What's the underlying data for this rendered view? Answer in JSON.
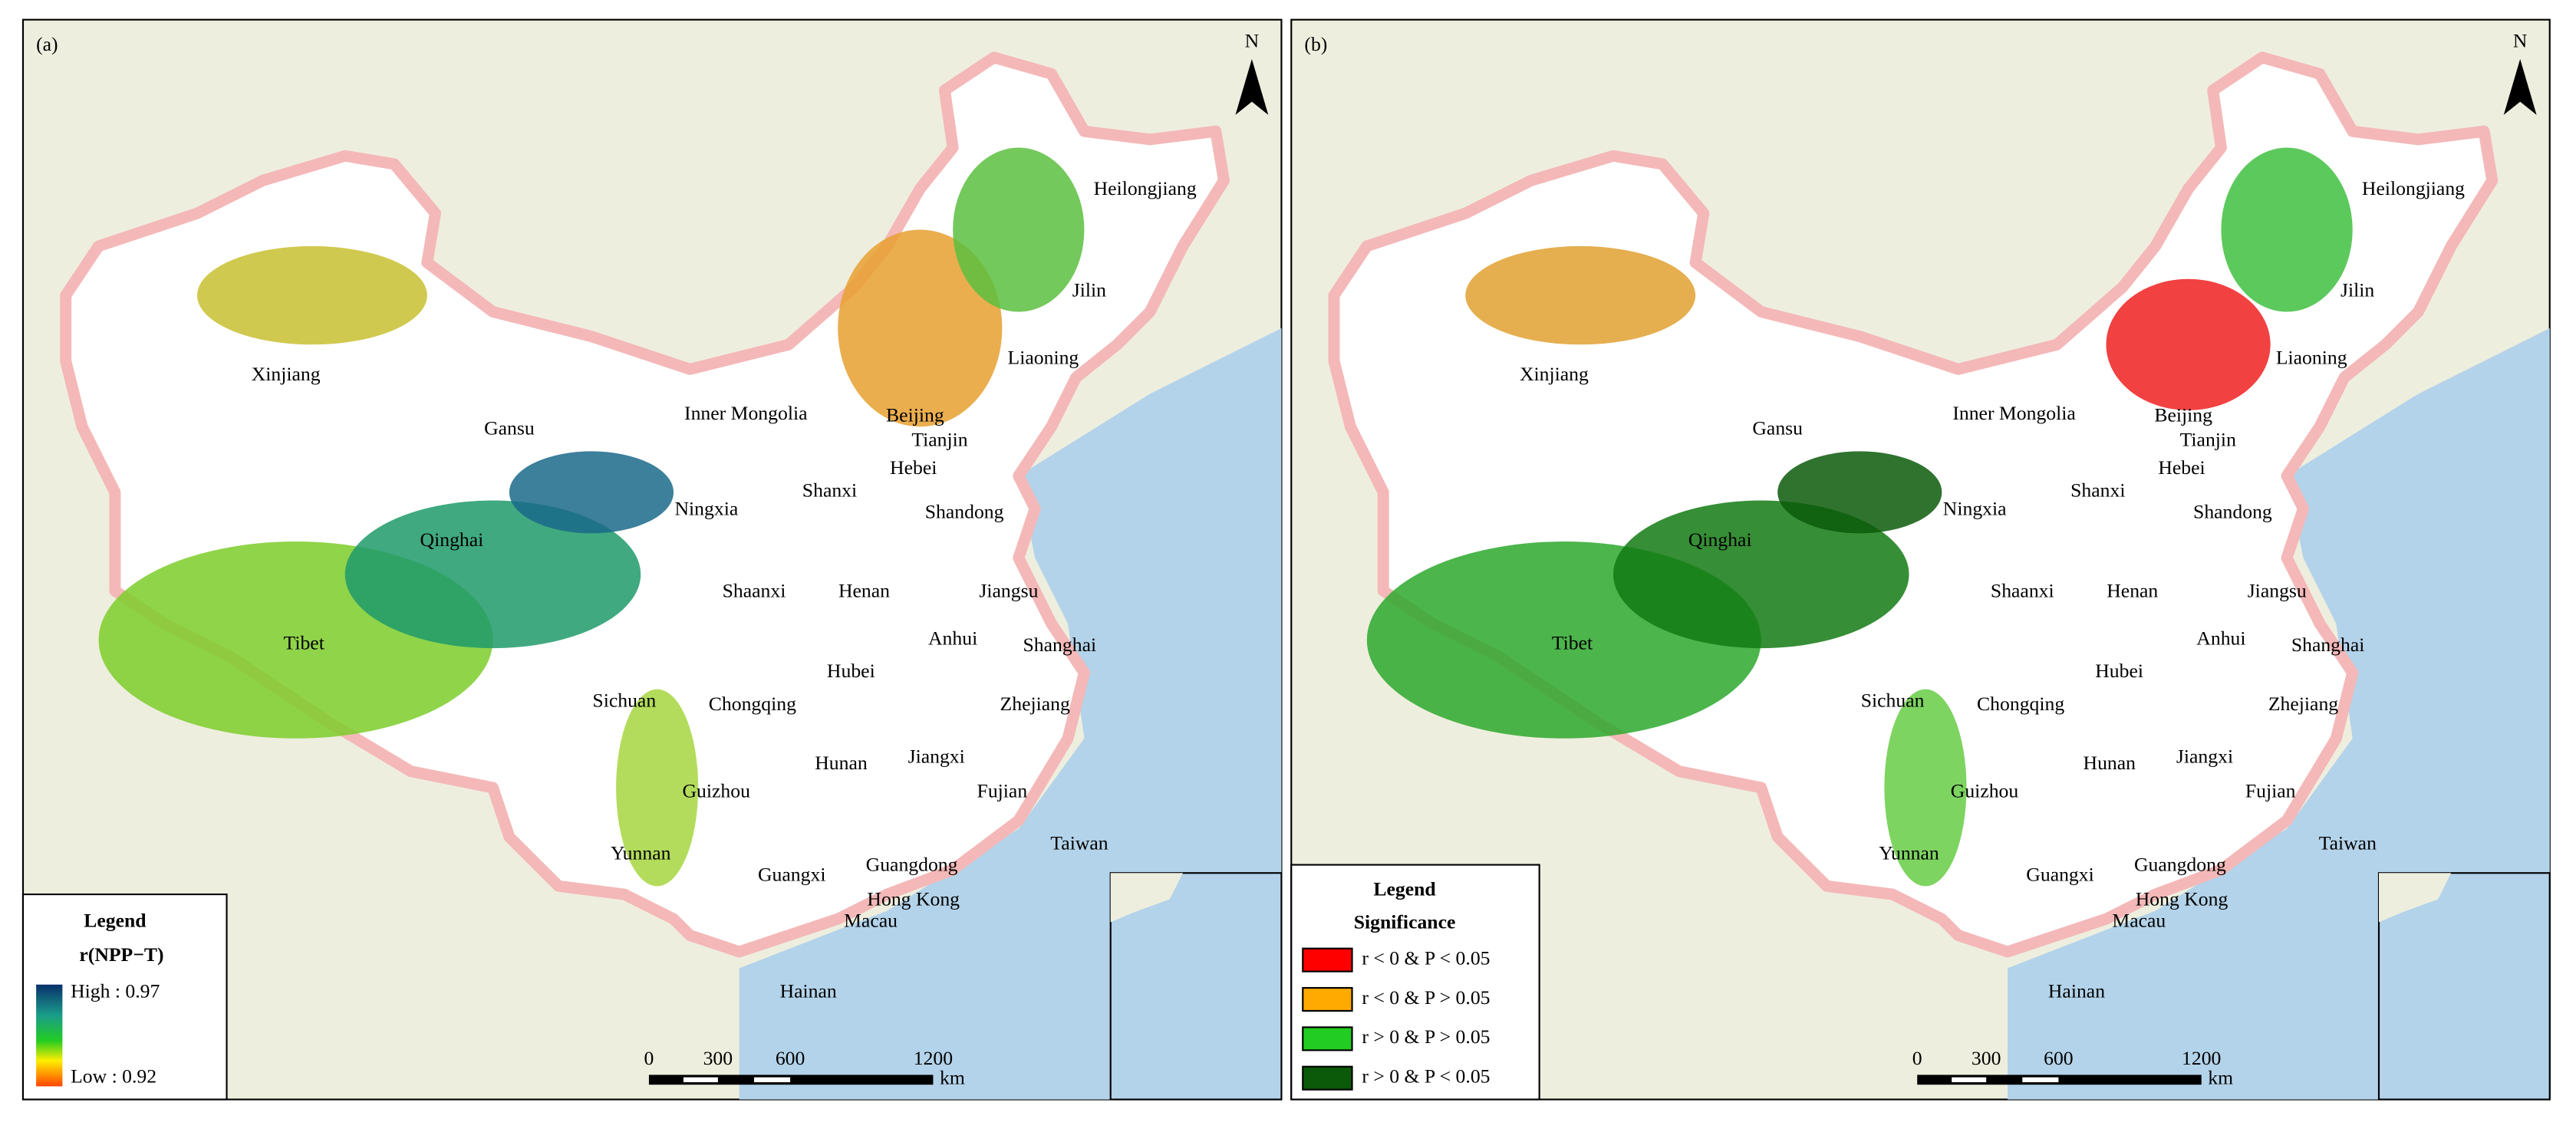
{
  "panels": [
    {
      "label": "(a)",
      "north": "N",
      "provinces": [
        "Heilongjiang",
        "Jilin",
        "Liaoning",
        "Xinjiang",
        "Gansu",
        "Inner Mongolia",
        "Beijing",
        "Tianjin",
        "Hebei",
        "Ningxia",
        "Shanxi",
        "Shandong",
        "Qinghai",
        "Shaanxi",
        "Henan",
        "Jiangsu",
        "Anhui",
        "Shanghai",
        "Tibet",
        "Hubei",
        "Sichuan",
        "Chongqing",
        "Zhejiang",
        "Hunan",
        "Jiangxi",
        "Guizhou",
        "Fujian",
        "Yunnan",
        "Taiwan",
        "Guangxi",
        "Guangdong",
        "Hong Kong",
        "Macau",
        "Hainan"
      ],
      "legend": {
        "title": "Legend",
        "subtitle": "r(NPP−T)",
        "high": "High : 0.97",
        "low": "Low :  0.92"
      },
      "scale": {
        "ticks": [
          "0",
          "300",
          "600",
          "1200"
        ],
        "unit": "km"
      }
    },
    {
      "label": "(b)",
      "north": "N",
      "provinces": [
        "Heilongjiang",
        "Jilin",
        "Liaoning",
        "Xinjiang",
        "Gansu",
        "Inner Mongolia",
        "Beijing",
        "Tianjin",
        "Hebei",
        "Ningxia",
        "Shanxi",
        "Shandong",
        "Qinghai",
        "Shaanxi",
        "Henan",
        "Jiangsu",
        "Anhui",
        "Shanghai",
        "Tibet",
        "Hubei",
        "Sichuan",
        "Chongqing",
        "Zhejiang",
        "Hunan",
        "Jiangxi",
        "Guizhou",
        "Fujian",
        "Yunnan",
        "Taiwan",
        "Guangxi",
        "Guangdong",
        "Hong Kong",
        "Macau",
        "Hainan"
      ],
      "legend": {
        "title": "Legend",
        "subtitle": "Significance",
        "items": [
          {
            "text": "r < 0 & P < 0.05",
            "color": "#ff0000"
          },
          {
            "text": "r < 0 & P > 0.05",
            "color": "#ffaa00"
          },
          {
            "text": "r > 0 & P > 0.05",
            "color": "#22cc22"
          },
          {
            "text": "r > 0 & P < 0.05",
            "color": "#0a5a0a"
          }
        ]
      },
      "scale": {
        "ticks": [
          "0",
          "300",
          "600",
          "1200"
        ],
        "unit": "km"
      }
    }
  ]
}
